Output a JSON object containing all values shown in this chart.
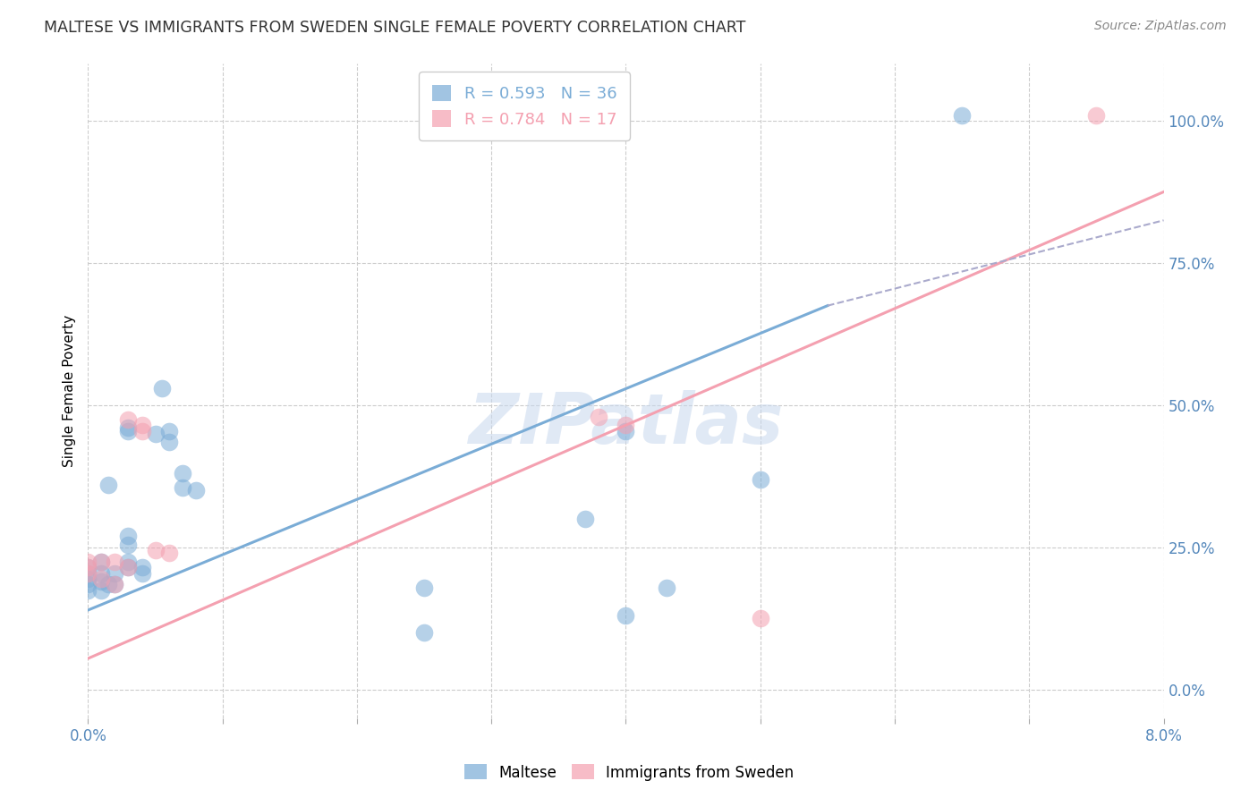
{
  "title": "MALTESE VS IMMIGRANTS FROM SWEDEN SINGLE FEMALE POVERTY CORRELATION CHART",
  "source": "Source: ZipAtlas.com",
  "ylabel": "Single Female Poverty",
  "xlim": [
    0.0,
    0.08
  ],
  "ylim": [
    -0.05,
    1.1
  ],
  "legend1_r": "0.593",
  "legend1_n": "36",
  "legend2_r": "0.784",
  "legend2_n": "17",
  "blue_color": "#7aacd6",
  "pink_color": "#f4a0b0",
  "watermark": "ZIPatlas",
  "blue_points": [
    [
      0.0,
      0.215
    ],
    [
      0.0,
      0.205
    ],
    [
      0.0,
      0.195
    ],
    [
      0.0,
      0.185
    ],
    [
      0.0,
      0.175
    ],
    [
      0.001,
      0.205
    ],
    [
      0.001,
      0.19
    ],
    [
      0.001,
      0.175
    ],
    [
      0.001,
      0.225
    ],
    [
      0.0015,
      0.36
    ],
    [
      0.0015,
      0.185
    ],
    [
      0.002,
      0.205
    ],
    [
      0.002,
      0.185
    ],
    [
      0.003,
      0.46
    ],
    [
      0.003,
      0.455
    ],
    [
      0.003,
      0.255
    ],
    [
      0.003,
      0.225
    ],
    [
      0.003,
      0.215
    ],
    [
      0.003,
      0.27
    ],
    [
      0.004,
      0.215
    ],
    [
      0.004,
      0.205
    ],
    [
      0.005,
      0.45
    ],
    [
      0.0055,
      0.53
    ],
    [
      0.006,
      0.455
    ],
    [
      0.006,
      0.435
    ],
    [
      0.007,
      0.38
    ],
    [
      0.007,
      0.355
    ],
    [
      0.008,
      0.35
    ],
    [
      0.04,
      0.455
    ],
    [
      0.043,
      0.18
    ],
    [
      0.05,
      0.37
    ],
    [
      0.037,
      0.3
    ],
    [
      0.065,
      1.01
    ],
    [
      0.04,
      0.13
    ],
    [
      0.025,
      0.1
    ],
    [
      0.025,
      0.18
    ]
  ],
  "pink_points": [
    [
      0.0,
      0.225
    ],
    [
      0.0,
      0.215
    ],
    [
      0.0,
      0.205
    ],
    [
      0.001,
      0.225
    ],
    [
      0.001,
      0.195
    ],
    [
      0.002,
      0.225
    ],
    [
      0.002,
      0.185
    ],
    [
      0.003,
      0.475
    ],
    [
      0.003,
      0.215
    ],
    [
      0.004,
      0.465
    ],
    [
      0.004,
      0.455
    ],
    [
      0.005,
      0.245
    ],
    [
      0.038,
      0.48
    ],
    [
      0.04,
      0.465
    ],
    [
      0.05,
      0.125
    ],
    [
      0.075,
      1.01
    ],
    [
      0.006,
      0.24
    ]
  ],
  "blue_line_x": [
    0.0,
    0.055
  ],
  "blue_line_y": [
    0.14,
    0.675
  ],
  "pink_line_x": [
    0.0,
    0.08
  ],
  "pink_line_y": [
    0.055,
    0.875
  ],
  "dash_line_x": [
    0.055,
    0.08
  ],
  "dash_line_y": [
    0.675,
    0.825
  ],
  "ytick_vals": [
    0.0,
    0.25,
    0.5,
    0.75,
    1.0
  ],
  "ytick_labels": [
    "0.0%",
    "25.0%",
    "50.0%",
    "75.0%",
    "100.0%"
  ],
  "xtick_vals": [
    0.0,
    0.01,
    0.02,
    0.03,
    0.04,
    0.05,
    0.06,
    0.07,
    0.08
  ],
  "xtick_labels": [
    "0.0%",
    "",
    "",
    "",
    "",
    "",
    "",
    "",
    "8.0%"
  ]
}
